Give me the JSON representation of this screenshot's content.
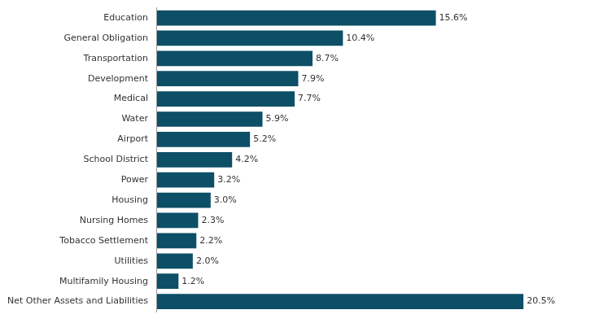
{
  "chart_data": {
    "type": "bar",
    "orientation": "horizontal",
    "categories": [
      "Education",
      "General Obligation",
      "Transportation",
      "Development",
      "Medical",
      "Water",
      "Airport",
      "School District",
      "Power",
      "Housing",
      "Nursing Homes",
      "Tobacco Settlement",
      "Utilities",
      "Multifamily Housing",
      "Net Other Assets and Liabilities"
    ],
    "values": [
      15.6,
      10.4,
      8.7,
      7.9,
      7.7,
      5.9,
      5.2,
      4.2,
      3.2,
      3.0,
      2.3,
      2.2,
      2.0,
      1.2,
      20.5
    ],
    "value_labels": [
      "15.6%",
      "10.4%",
      "8.7%",
      "7.9%",
      "7.7%",
      "5.9%",
      "5.2%",
      "4.2%",
      "3.2%",
      "3.0%",
      "2.3%",
      "2.2%",
      "2.0%",
      "1.2%",
      "20.5%"
    ],
    "data_labels": true,
    "color": "#0d4f66",
    "xlim": [
      0,
      25
    ],
    "grid": false,
    "tick_labels": "y"
  }
}
